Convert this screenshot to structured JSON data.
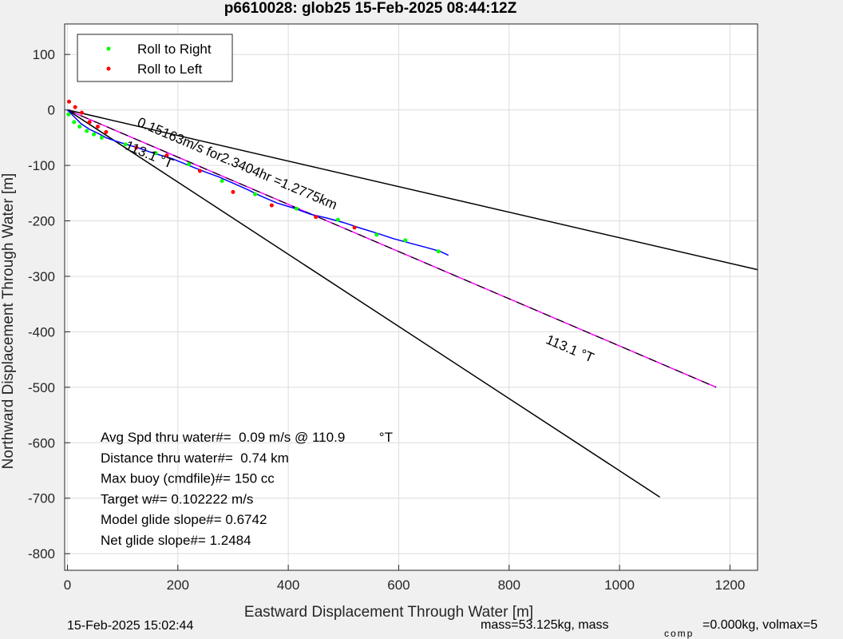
{
  "chart_data": {
    "type": "line",
    "title": "p6610028: glob25 15-Feb-2025 08:44:12Z",
    "xlabel": "Eastward Displacement Through Water [m]",
    "ylabel": "Northward Displacement Through Water [m]",
    "xlim": [
      -5,
      1250
    ],
    "ylim": [
      -830,
      155
    ],
    "xticks": [
      0,
      200,
      400,
      600,
      800,
      1000,
      1200
    ],
    "yticks": [
      100,
      0,
      -100,
      -200,
      -300,
      -400,
      -500,
      -600,
      -700,
      -800
    ],
    "grid": true,
    "legend_position": "top-left",
    "legend": [
      {
        "label": "Roll to Right",
        "color": "#00ff00"
      },
      {
        "label": "Roll to Left",
        "color": "#ff0000"
      }
    ],
    "track": {
      "color": "#0000ff",
      "x": [
        0,
        10,
        25,
        40,
        55,
        70,
        90,
        110,
        130,
        150,
        170,
        190,
        210,
        230,
        250,
        275,
        300,
        325,
        350,
        380,
        410,
        440,
        470,
        500,
        530,
        560,
        590,
        620,
        650,
        675,
        690
      ],
      "y": [
        0,
        -10,
        -25,
        -35,
        -42,
        -50,
        -57,
        -63,
        -69,
        -76,
        -82,
        -88,
        -96,
        -104,
        -112,
        -121,
        -132,
        -143,
        -155,
        -168,
        -177,
        -188,
        -195,
        -203,
        -213,
        -222,
        -232,
        -240,
        -248,
        -255,
        -262
      ]
    },
    "roll_right_points": {
      "x": [
        2,
        12,
        22,
        35,
        48,
        62,
        105,
        160,
        220,
        280,
        340,
        415,
        490,
        560,
        612,
        672
      ],
      "y": [
        -8,
        -22,
        -30,
        -38,
        -44,
        -50,
        -62,
        -78,
        -98,
        -128,
        -152,
        -178,
        -198,
        -225,
        -235,
        -255
      ]
    },
    "roll_left_points": {
      "x": [
        3,
        14,
        26,
        40,
        55,
        70,
        125,
        180,
        240,
        300,
        370,
        450,
        520
      ],
      "y": [
        15,
        5,
        -5,
        -22,
        -30,
        -40,
        -68,
        -82,
        -110,
        -148,
        -172,
        -193,
        -212
      ]
    },
    "lines": [
      {
        "color": "#000000",
        "x": [
          0,
          1250
        ],
        "y": [
          0,
          -288
        ]
      },
      {
        "color": "#000000",
        "x": [
          0,
          1073
        ],
        "y": [
          0,
          -698
        ]
      },
      {
        "color": "#ff00ff",
        "x": [
          0,
          1175
        ],
        "y": [
          0,
          -500
        ]
      },
      {
        "color": "#000000",
        "dashed": true,
        "x": [
          0,
          1175
        ],
        "y": [
          0,
          -500
        ]
      }
    ],
    "annotations": [
      {
        "text": "0.15163m/s for2.3404hr =1.2775km",
        "x": 125,
        "y": -28,
        "angle": 23
      },
      {
        "text": "113.1  °T",
        "x": 103,
        "y": -70,
        "angle": 23
      },
      {
        "text": "113.1  °T",
        "x": 865,
        "y": -420,
        "angle": 23
      }
    ],
    "stats": [
      "Avg Spd thru water#=  0.09 m/s @ 110.9         °T",
      "Distance thru water#=  0.74 km",
      "Max buoy (cmdfile)#= 150 cc",
      "Target w#= 0.102222 m/s",
      "Model glide slope#= 0.6742",
      "Net glide slope#= 1.2484"
    ]
  },
  "footer": {
    "date": "15-Feb-2025 15:02:44",
    "mass_main": "mass=53.125kg, mass",
    "mass_sub": "comp",
    "mass_rest": "=0.000kg, volmax=5"
  }
}
